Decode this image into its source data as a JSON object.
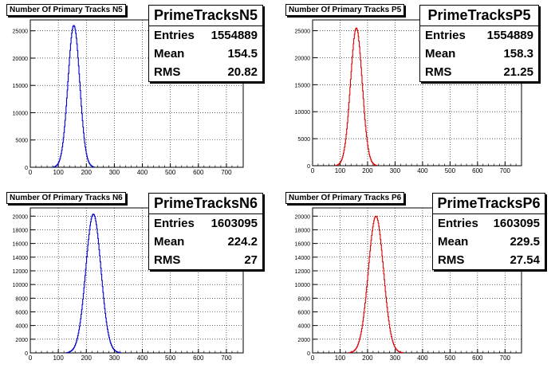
{
  "chart_data": [
    {
      "type": "line",
      "title": "Number Of Primary Tracks N5",
      "stats": {
        "name": "PrimeTracksN5",
        "entries": "1554889",
        "mean": "154.5",
        "rms": "20.82"
      },
      "labels": {
        "entries": "Entries",
        "mean": "Mean",
        "rms": "RMS"
      },
      "series_color": "#0000cc",
      "xlim": [
        0,
        760
      ],
      "ylim": [
        0,
        27000
      ],
      "xticks": [
        0,
        100,
        200,
        300,
        400,
        500,
        600,
        700
      ],
      "yticks": [
        0,
        5000,
        10000,
        15000,
        20000,
        25000
      ],
      "series": [
        {
          "mean": 154.5,
          "rms": 20.82,
          "peak": 26000
        }
      ]
    },
    {
      "type": "line",
      "title": "Number Of Primary Tracks P5",
      "stats": {
        "name": "PrimeTracksP5",
        "entries": "1554889",
        "mean": "158.3",
        "rms": "21.25"
      },
      "labels": {
        "entries": "Entries",
        "mean": "Mean",
        "rms": "RMS"
      },
      "series_color": "#dd0000",
      "xlim": [
        0,
        760
      ],
      "ylim": [
        0,
        27000
      ],
      "xticks": [
        0,
        100,
        200,
        300,
        400,
        500,
        600,
        700
      ],
      "yticks": [
        0,
        5000,
        10000,
        15000,
        20000,
        25000
      ],
      "series": [
        {
          "mean": 158.3,
          "rms": 21.25,
          "peak": 25500
        }
      ]
    },
    {
      "type": "line",
      "title": "Number Of Primary Tracks N6",
      "stats": {
        "name": "PrimeTracksN6",
        "entries": "1603095",
        "mean": "224.2",
        "rms": "27"
      },
      "labels": {
        "entries": "Entries",
        "mean": "Mean",
        "rms": "RMS"
      },
      "series_color": "#0000cc",
      "xlim": [
        0,
        760
      ],
      "ylim": [
        0,
        21200
      ],
      "xticks": [
        0,
        100,
        200,
        300,
        400,
        500,
        600,
        700
      ],
      "yticks": [
        0,
        2000,
        4000,
        6000,
        8000,
        10000,
        12000,
        14000,
        16000,
        18000,
        20000
      ],
      "series": [
        {
          "mean": 224.2,
          "rms": 27,
          "peak": 20300
        }
      ]
    },
    {
      "type": "line",
      "title": "Number Of Primary Tracks P6",
      "stats": {
        "name": "PrimeTracksP6",
        "entries": "1603095",
        "mean": "229.5",
        "rms": "27.54"
      },
      "labels": {
        "entries": "Entries",
        "mean": "Mean",
        "rms": "RMS"
      },
      "series_color": "#dd0000",
      "xlim": [
        0,
        760
      ],
      "ylim": [
        0,
        21200
      ],
      "xticks": [
        0,
        100,
        200,
        300,
        400,
        500,
        600,
        700
      ],
      "yticks": [
        0,
        2000,
        4000,
        6000,
        8000,
        10000,
        12000,
        14000,
        16000,
        18000,
        20000
      ],
      "series": [
        {
          "mean": 229.5,
          "rms": 27.54,
          "peak": 20000
        }
      ]
    }
  ]
}
